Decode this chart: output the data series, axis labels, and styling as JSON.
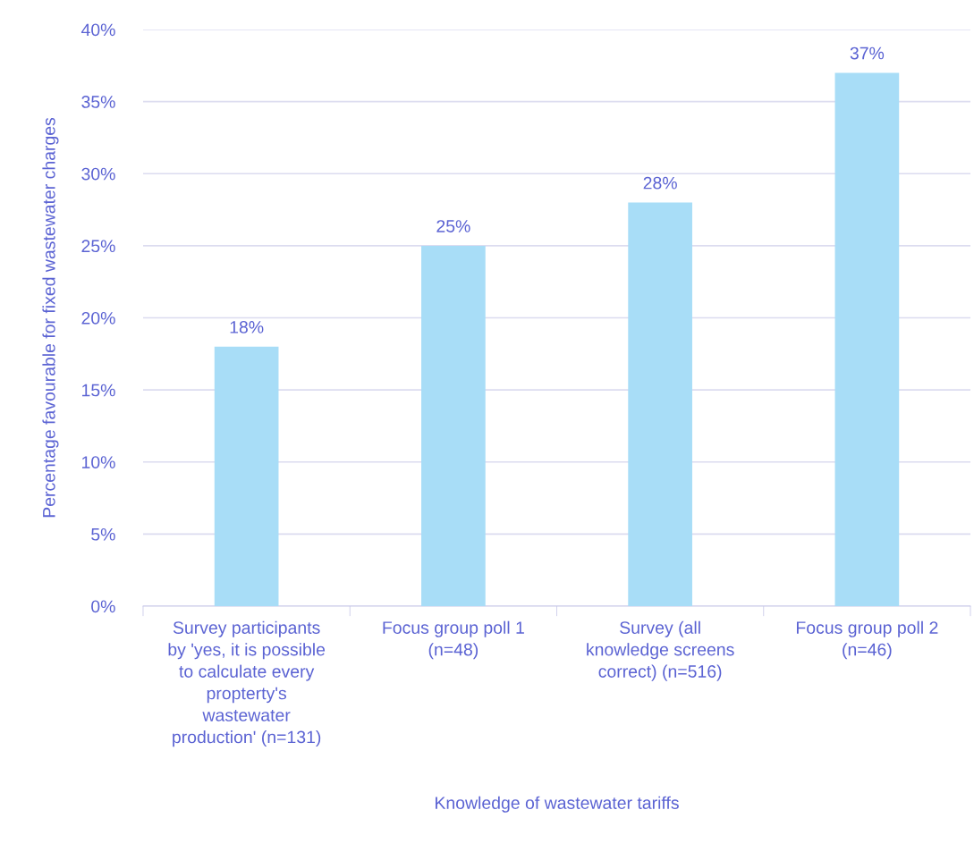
{
  "chart_data": {
    "type": "bar",
    "xlabel": "Knowledge of wastewater tariffs",
    "ylabel": "Percentage favourable for fixed wastewater charges",
    "categories": [
      "Survey participants\nby 'yes, it is possible\nto calculate every\npropterty's\nwastewater\nproduction' (n=131)",
      "Focus group poll 1\n(n=48)",
      "Survey (all\nknowledge screens\ncorrect) (n=516)",
      "Focus group poll 2\n(n=46)"
    ],
    "values": [
      18,
      25,
      28,
      37
    ],
    "value_labels": [
      "18%",
      "25%",
      "28%",
      "37%"
    ],
    "color": "#a8ddf7",
    "ylim": [
      0,
      40
    ],
    "yticks": [
      {
        "value": 0,
        "label": "0%"
      },
      {
        "value": 5,
        "label": "5%"
      },
      {
        "value": 10,
        "label": "10%"
      },
      {
        "value": 15,
        "label": "15%"
      },
      {
        "value": 20,
        "label": "20%"
      },
      {
        "value": 25,
        "label": "25%"
      },
      {
        "value": 30,
        "label": "30%"
      },
      {
        "value": 35,
        "label": "35%"
      },
      {
        "value": 40,
        "label": "40%"
      }
    ],
    "grid": "y"
  }
}
